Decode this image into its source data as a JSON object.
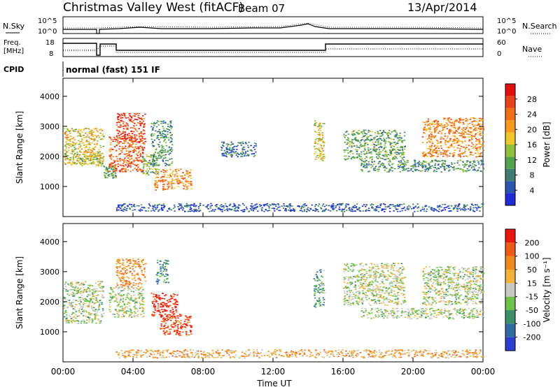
{
  "header": {
    "station": "Christmas Valley West (fitACF)",
    "beam": "Beam 07",
    "date": "13/Apr/2014"
  },
  "status_panels": {
    "nsky_label": "N.Sky",
    "nsky_ticks": [
      "10^5",
      "10^0"
    ],
    "nsearch_label": "N.Search",
    "nsearch_ticks": [
      "10^5",
      "10^0"
    ],
    "freq_label_1": "Freq.",
    "freq_label_2": "[MHz]",
    "freq_ticks": [
      "18",
      "8"
    ],
    "nave_label": "Nave",
    "nave_ticks": [
      "60",
      "0"
    ],
    "cpid_label": "CPID",
    "cpid_value": "normal (fast) 151 IF"
  },
  "chart_data": [
    {
      "type": "heatmap",
      "title": "",
      "xlabel": "Time UT",
      "ylabel": "Slant Range [km]",
      "x_ticks": [
        "00:00",
        "04:00",
        "08:00",
        "12:00",
        "16:00",
        "20:00",
        "00:00"
      ],
      "xlim": [
        0,
        24
      ],
      "ylim": [
        0,
        4600
      ],
      "y_ticks": [
        "1000",
        "2000",
        "3000",
        "4000"
      ],
      "colorbar": {
        "label": "Power [dB]",
        "ticks": [
          "4",
          "8",
          "12",
          "16",
          "20",
          "24",
          "28"
        ],
        "colors": [
          "#1f2bd6",
          "#2a55b0",
          "#3f7e6e",
          "#55a24e",
          "#8fbf3c",
          "#f0c62a",
          "#f59a1e",
          "#f07018",
          "#e8421a",
          "#e01010"
        ]
      },
      "patches": [
        {
          "t0": 0.0,
          "t1": 2.3,
          "r0": 1700,
          "r1": 2950,
          "level": 0.55
        },
        {
          "t0": 0.1,
          "t1": 2.3,
          "r0": 1750,
          "r1": 2100,
          "level": 0.45
        },
        {
          "t0": 2.3,
          "t1": 3.0,
          "r0": 1300,
          "r1": 1700,
          "level": 0.35
        },
        {
          "t0": 3.0,
          "t1": 4.7,
          "r0": 2500,
          "r1": 3450,
          "level": 0.85
        },
        {
          "t0": 2.6,
          "t1": 4.6,
          "r0": 1500,
          "r1": 2700,
          "level": 0.8
        },
        {
          "t0": 4.5,
          "t1": 5.5,
          "r0": 1400,
          "r1": 2100,
          "level": 0.4
        },
        {
          "t0": 5.0,
          "t1": 6.2,
          "r0": 1700,
          "r1": 3200,
          "level": 0.3
        },
        {
          "t0": 5.2,
          "t1": 7.3,
          "r0": 900,
          "r1": 1600,
          "level": 0.7
        },
        {
          "t0": 9.0,
          "t1": 11.0,
          "r0": 2000,
          "r1": 2500,
          "level": 0.2
        },
        {
          "t0": 14.3,
          "t1": 14.9,
          "r0": 1800,
          "r1": 3200,
          "level": 0.55
        },
        {
          "t0": 16.0,
          "t1": 19.5,
          "r0": 1900,
          "r1": 2900,
          "level": 0.35
        },
        {
          "t0": 17.0,
          "t1": 24.0,
          "r0": 1500,
          "r1": 1900,
          "level": 0.3
        },
        {
          "t0": 20.5,
          "t1": 24.0,
          "r0": 2000,
          "r1": 3300,
          "level": 0.7
        },
        {
          "t0": 3.0,
          "t1": 24.0,
          "r0": 180,
          "r1": 450,
          "level": 0.15
        }
      ]
    },
    {
      "type": "heatmap",
      "title": "",
      "xlabel": "Time UT",
      "ylabel": "Slant Range [km]",
      "x_ticks": [
        "00:00",
        "04:00",
        "08:00",
        "12:00",
        "16:00",
        "20:00",
        "00:00"
      ],
      "xlim": [
        0,
        24
      ],
      "ylim": [
        0,
        4600
      ],
      "y_ticks": [
        "1000",
        "2000",
        "3000",
        "4000"
      ],
      "colorbar": {
        "label": "Velocity [m s⁻¹]",
        "ticks": [
          "200",
          "100",
          "50",
          "15",
          "-15",
          "-50",
          "-100",
          "-200"
        ],
        "colors": [
          "#2a3ed0",
          "#2f6aa0",
          "#3d8f6a",
          "#6cc24a",
          "#c8c8c4",
          "#f3b23a",
          "#f08a1c",
          "#f05a14",
          "#e8180e"
        ]
      },
      "patches": [
        {
          "t0": 0.0,
          "t1": 2.3,
          "r0": 1300,
          "r1": 2700,
          "level": 0.45
        },
        {
          "t0": 3.0,
          "t1": 4.7,
          "r0": 2500,
          "r1": 3450,
          "level": 0.7
        },
        {
          "t0": 2.6,
          "t1": 4.6,
          "r0": 1500,
          "r1": 2500,
          "level": 0.47
        },
        {
          "t0": 5.3,
          "t1": 6.0,
          "r0": 2600,
          "r1": 3400,
          "level": 0.25
        },
        {
          "t0": 5.0,
          "t1": 6.5,
          "r0": 1500,
          "r1": 2300,
          "level": 0.98
        },
        {
          "t0": 5.5,
          "t1": 7.3,
          "r0": 900,
          "r1": 1600,
          "level": 0.88
        },
        {
          "t0": 14.3,
          "t1": 14.9,
          "r0": 1800,
          "r1": 3100,
          "level": 0.3
        },
        {
          "t0": 16.0,
          "t1": 19.5,
          "r0": 1900,
          "r1": 3300,
          "level": 0.47
        },
        {
          "t0": 17.0,
          "t1": 24.0,
          "r0": 1450,
          "r1": 1800,
          "level": 0.47
        },
        {
          "t0": 20.5,
          "t1": 24.0,
          "r0": 1900,
          "r1": 3200,
          "level": 0.47
        },
        {
          "t0": 3.0,
          "t1": 24.0,
          "r0": 150,
          "r1": 420,
          "level": 0.65
        }
      ]
    }
  ]
}
